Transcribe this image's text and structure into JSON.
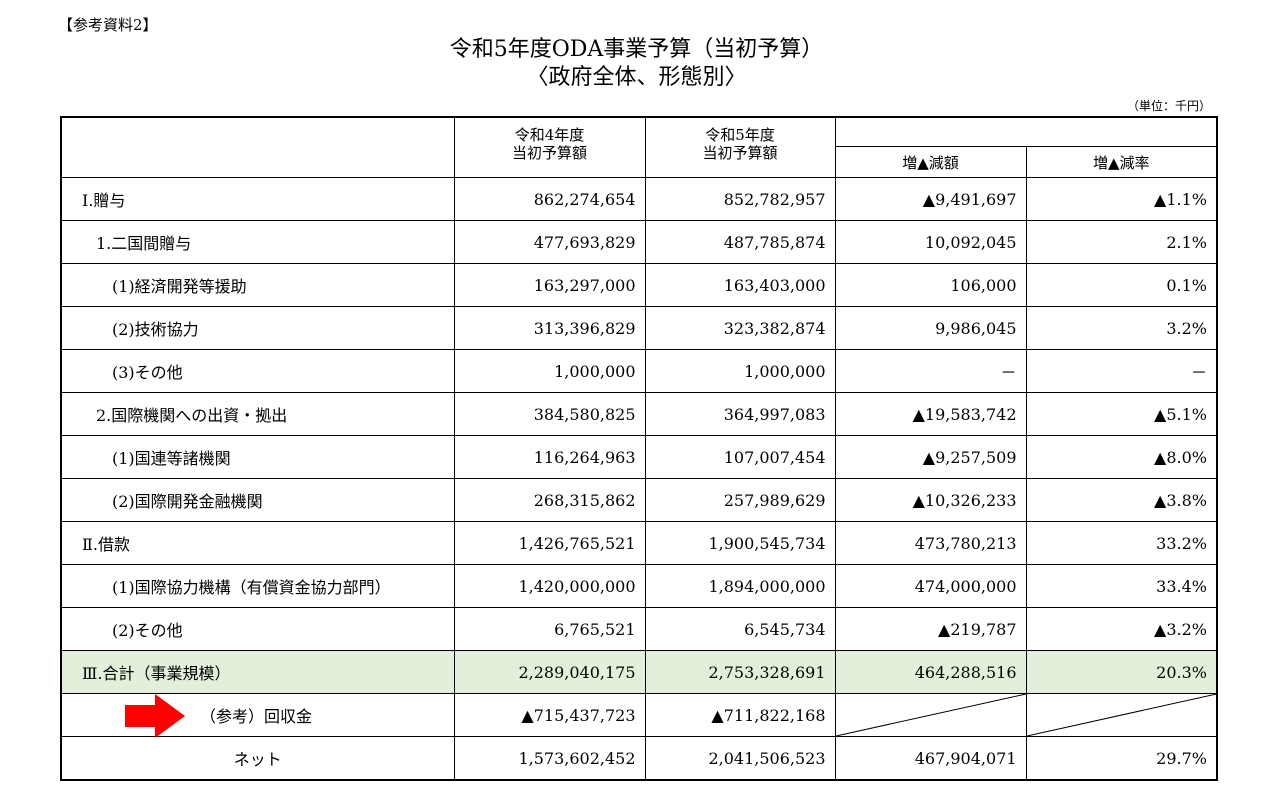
{
  "doc": {
    "ref_label": "【参考資料2】",
    "title_line1": "令和5年度ODA事業予算（当初予算）",
    "title_line2": "〈政府全体、形態別〉",
    "unit": "（単位：千円）"
  },
  "header": {
    "y4": "令和4年度\n当初予算額",
    "y5": "令和5年度\n当初予算額",
    "diff": "増▲減額",
    "rate": "増▲減率"
  },
  "rows": [
    {
      "label": "Ⅰ.贈与",
      "y4": "862,274,654",
      "y5": "852,782,957",
      "diff": "▲9,491,697",
      "rate": "▲1.1%"
    },
    {
      "label": "1.二国間贈与",
      "y4": "477,693,829",
      "y5": "487,785,874",
      "diff": "10,092,045",
      "rate": "2.1%"
    },
    {
      "label": "(1)経済開発等援助",
      "y4": "163,297,000",
      "y5": "163,403,000",
      "diff": "106,000",
      "rate": "0.1%"
    },
    {
      "label": "(2)技術協力",
      "y4": "313,396,829",
      "y5": "323,382,874",
      "diff": "9,986,045",
      "rate": "3.2%"
    },
    {
      "label": "(3)その他",
      "y4": "1,000,000",
      "y5": "1,000,000",
      "diff": "－",
      "rate": "－"
    },
    {
      "label": "2.国際機関への出資・拠出",
      "y4": "384,580,825",
      "y5": "364,997,083",
      "diff": "▲19,583,742",
      "rate": "▲5.1%"
    },
    {
      "label": "(1)国連等諸機関",
      "y4": "116,264,963",
      "y5": "107,007,454",
      "diff": "▲9,257,509",
      "rate": "▲8.0%"
    },
    {
      "label": "(2)国際開発金融機関",
      "y4": "268,315,862",
      "y5": "257,989,629",
      "diff": "▲10,326,233",
      "rate": "▲3.8%"
    },
    {
      "label": "Ⅱ.借款",
      "y4": "1,426,765,521",
      "y5": "1,900,545,734",
      "diff": "473,780,213",
      "rate": "33.2%"
    },
    {
      "label": "(1)国際協力機構（有償資金協力部門）",
      "y4": "1,420,000,000",
      "y5": "1,894,000,000",
      "diff": "474,000,000",
      "rate": "33.4%"
    },
    {
      "label": "(2)その他",
      "y4": "6,765,521",
      "y5": "6,545,734",
      "diff": "▲219,787",
      "rate": "▲3.2%"
    },
    {
      "label": "Ⅲ.合計（事業規模）",
      "y4": "2,289,040,175",
      "y5": "2,753,328,691",
      "diff": "464,288,516",
      "rate": "20.3%"
    },
    {
      "label": "（参考）回収金",
      "y4": "▲715,437,723",
      "y5": "▲711,822,168"
    },
    {
      "label": "ネット",
      "y4": "1,573,602,452",
      "y5": "2,041,506,523",
      "diff": "467,904,071",
      "rate": "29.7%"
    }
  ],
  "colors": {
    "total_row_bg": "#e2efda",
    "arrow": "#ff0000"
  },
  "icons": {
    "pointer": "red-right-arrow-icon"
  }
}
